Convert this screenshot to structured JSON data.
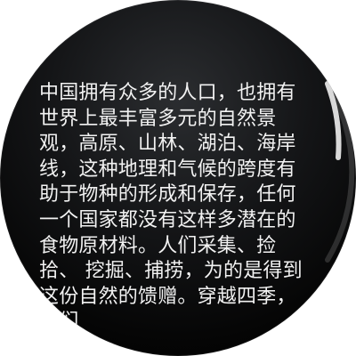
{
  "article": {
    "text": "中国拥有众多的人口，也拥有世界上最丰富多元的自然景观，高原、山林、湖泊、海岸 线，这种地理和气候的跨度有助于物种的形成和保存，任何一个国家都没有这样多潜在的食物原材料。人们采集、捡拾、 挖掘、捕捞，为的是得到这份自然的馈赠。穿越四季，我们"
  },
  "scroll": {
    "position": 0.42
  }
}
